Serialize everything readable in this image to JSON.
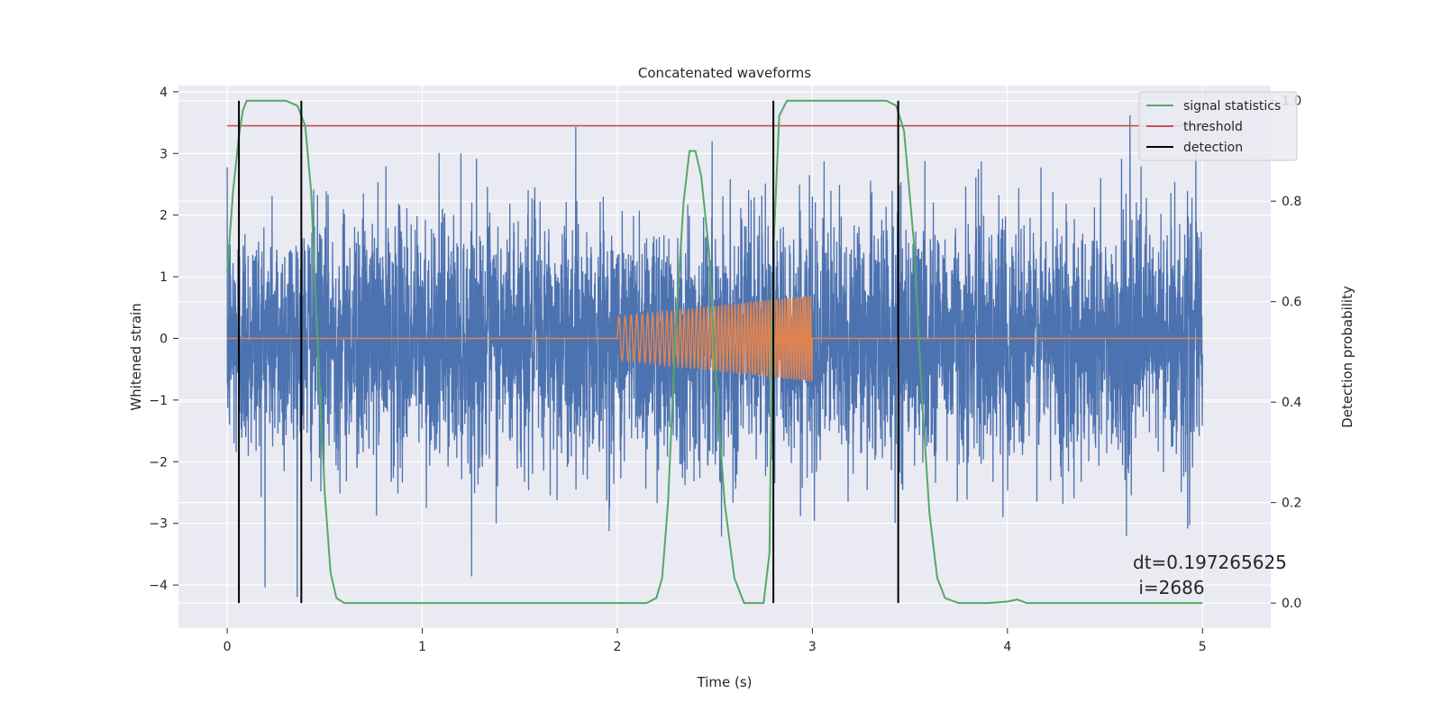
{
  "chart_data": {
    "type": "line",
    "title": "Concatenated waveforms",
    "xlabel": "Time (s)",
    "ylabel_left": "Whitened strain",
    "ylabel_right": "Detection probability",
    "xlim": [
      -0.25,
      5.35
    ],
    "ylim_left": [
      -4.7,
      4.1
    ],
    "ylim_right": [
      -0.05,
      1.03
    ],
    "xticks": [
      0,
      1,
      2,
      3,
      4,
      5
    ],
    "xtick_labels": [
      "0",
      "1",
      "2",
      "3",
      "4",
      "5"
    ],
    "yticks_left": [
      4,
      3,
      2,
      1,
      0,
      -1,
      -2,
      -3,
      -4
    ],
    "ytick_labels_left": [
      "4",
      "3",
      "2",
      "1",
      "0",
      "−1",
      "−2",
      "−3",
      "−4"
    ],
    "yticks_right": [
      1.0,
      0.8,
      0.6,
      0.4,
      0.2,
      0.0
    ],
    "ytick_labels_right": [
      "1.0",
      "0.8",
      "0.6",
      "0.4",
      "0.2",
      "0.0"
    ],
    "grid": true,
    "legend_position": "top-right",
    "legend": [
      {
        "label": "signal statistics",
        "color": "#55a868"
      },
      {
        "label": "threshold",
        "color": "#c44e52"
      },
      {
        "label": "detection",
        "color": "#000000"
      }
    ],
    "series": [
      {
        "name": "",
        "role": "whitened noise",
        "color": "#4c72b0",
        "x_range": [
          0,
          5
        ],
        "amplitude_typical": 1.0,
        "max": 3.7,
        "min": -4.4
      },
      {
        "name": "",
        "role": "injected signal",
        "color": "#dd8452",
        "x_range": [
          0,
          5
        ],
        "chirp_window": [
          2.0,
          3.0
        ],
        "amplitude_start": 0.35,
        "amplitude_end": 0.7
      },
      {
        "name": "signal statistics",
        "axis": "right",
        "color": "#55a868",
        "x": [
          0.0,
          0.03,
          0.06,
          0.08,
          0.1,
          0.13,
          0.2,
          0.3,
          0.36,
          0.4,
          0.43,
          0.46,
          0.5,
          0.53,
          0.56,
          0.6,
          1.0,
          1.5,
          2.0,
          2.15,
          2.2,
          2.23,
          2.26,
          2.3,
          2.34,
          2.37,
          2.4,
          2.43,
          2.47,
          2.5,
          2.55,
          2.6,
          2.65,
          2.7,
          2.75,
          2.78,
          2.8,
          2.83,
          2.87,
          2.95,
          3.2,
          3.38,
          3.43,
          3.47,
          3.52,
          3.56,
          3.6,
          3.64,
          3.68,
          3.75,
          3.9,
          4.0,
          4.05,
          4.1,
          4.3,
          4.6,
          4.9,
          5.0
        ],
        "y": [
          0.66,
          0.82,
          0.93,
          0.98,
          1.0,
          1.0,
          1.0,
          1.0,
          0.99,
          0.95,
          0.82,
          0.55,
          0.22,
          0.06,
          0.01,
          0.0,
          0.0,
          0.0,
          0.0,
          0.0,
          0.01,
          0.05,
          0.2,
          0.55,
          0.8,
          0.9,
          0.9,
          0.85,
          0.7,
          0.48,
          0.2,
          0.05,
          0.0,
          0.0,
          0.0,
          0.1,
          0.7,
          0.97,
          1.0,
          1.0,
          1.0,
          1.0,
          0.99,
          0.94,
          0.72,
          0.42,
          0.18,
          0.05,
          0.01,
          0.0,
          0.0,
          0.003,
          0.007,
          0.0,
          0.0,
          0.0,
          0.0,
          0.0
        ]
      },
      {
        "name": "threshold",
        "axis": "right",
        "color": "#c44e52",
        "x": [
          0,
          5
        ],
        "y": [
          0.95,
          0.95
        ]
      },
      {
        "name": "detection",
        "axis": "right",
        "color": "#000000",
        "vlines_x": [
          0.06,
          0.38,
          2.8,
          3.44
        ],
        "ymin": 0.0,
        "ymax": 1.0
      }
    ],
    "annotation_lines": [
      "dt=0.197265625",
      " i=2686"
    ]
  }
}
